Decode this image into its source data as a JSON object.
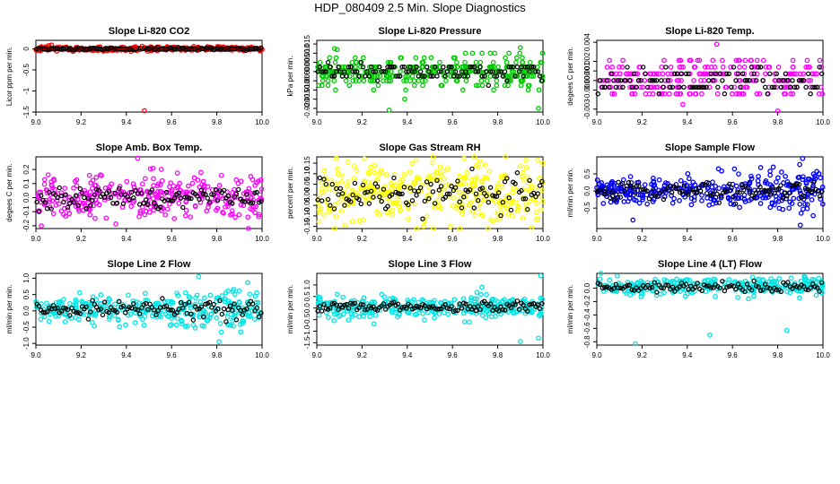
{
  "page_title": "HDP_080409  2.5 Min. Slope Diagnostics",
  "chart_data": [
    {
      "type": "scatter",
      "title": "Slope Li-820 CO2",
      "ylabel": "Licor ppm per min.",
      "xlim": [
        9.0,
        10.0
      ],
      "ylim": [
        -1.5,
        0.2
      ],
      "xticks": [
        9.0,
        9.2,
        9.4,
        9.6,
        9.8,
        10.0
      ],
      "xtick_labels": [
        "9.0",
        "9.2",
        "9.4",
        "9.6",
        "9.8",
        "10.0"
      ],
      "yticks": [
        0,
        -0.5,
        -1.0,
        -1.5
      ],
      "ytick_labels": [
        "0",
        "-0.5",
        "-1",
        "-1.5"
      ],
      "color": "#ff0000",
      "spread": 0.025,
      "n_points": 320,
      "black_points": 120,
      "outliers": [
        [
          9.48,
          -1.47
        ],
        [
          9.44,
          0.05
        ],
        [
          9.47,
          0.06
        ]
      ],
      "mean": 0.0,
      "seed": 11
    },
    {
      "type": "scatter",
      "title": "Slope Li-820 Pressure",
      "ylabel": "kPa per min.",
      "xlim": [
        9.0,
        10.0
      ],
      "ylim": [
        -0.022,
        0.017
      ],
      "xticks": [
        9.0,
        9.2,
        9.4,
        9.6,
        9.8,
        10.0
      ],
      "xtick_labels": [
        "9.0",
        "9.2",
        "9.4",
        "9.6",
        "9.8",
        "10.0"
      ],
      "yticks": [
        0.015,
        0.01,
        0.005,
        0.0,
        -0.005,
        -0.01,
        -0.015,
        -0.02
      ],
      "ytick_labels": [
        "0.015",
        "0.010",
        "0.005",
        "0.000",
        "-0.005",
        "-0.010",
        "-0.015",
        "-0.020"
      ],
      "color": "#00cc00",
      "spread": 0.004,
      "n_points": 330,
      "black_points": 110,
      "outliers": [
        [
          9.09,
          0.012
        ],
        [
          9.98,
          -0.02
        ],
        [
          9.32,
          -0.021
        ],
        [
          9.9,
          0.013
        ]
      ],
      "mean": 0.0,
      "seed": 23,
      "quantize": 0.0025
    },
    {
      "type": "scatter",
      "title": "Slope Li-820 Temp.",
      "ylabel": "degees C per min.",
      "xlim": [
        9.0,
        10.0
      ],
      "ylim": [
        -0.0033,
        0.0042
      ],
      "xticks": [
        9.0,
        9.2,
        9.4,
        9.6,
        9.8,
        10.0
      ],
      "xtick_labels": [
        "9.0",
        "9.2",
        "9.4",
        "9.6",
        "9.8",
        "10.0"
      ],
      "yticks": [
        0.004,
        0.002,
        0.001,
        0.0,
        -0.001,
        -0.003
      ],
      "ytick_labels": [
        "0.004",
        "0.002",
        "0.001",
        "0.000",
        "-0.001",
        "-0.003"
      ],
      "color": "#ff00ff",
      "spread": 0.0012,
      "n_points": 260,
      "black_points": 100,
      "outliers": [
        [
          9.53,
          0.0038
        ],
        [
          9.8,
          -0.0032
        ],
        [
          9.38,
          -0.0025
        ]
      ],
      "mean": 0.0,
      "seed": 37,
      "levels": [
        -0.0014,
        -0.0007,
        0.0,
        0.0007,
        0.0014,
        0.0021
      ]
    },
    {
      "type": "scatter",
      "title": "Slope Amb. Box Temp.",
      "ylabel": "degees C per min.",
      "xlim": [
        9.0,
        10.0
      ],
      "ylim": [
        -0.22,
        0.29
      ],
      "xticks": [
        9.0,
        9.2,
        9.4,
        9.6,
        9.8,
        10.0
      ],
      "xtick_labels": [
        "9.0",
        "9.2",
        "9.4",
        "9.6",
        "9.8",
        "10.0"
      ],
      "yticks": [
        0.2,
        0.1,
        0.0,
        -0.1,
        -0.2
      ],
      "ytick_labels": [
        "0.2",
        "0.1",
        "0.0",
        "-0.1",
        "-0.2"
      ],
      "color": "#ff00ff",
      "spread": 0.08,
      "n_points": 330,
      "black_points": 110,
      "outliers": [
        [
          9.45,
          0.28
        ]
      ],
      "mean": 0.0,
      "seed": 41
    },
    {
      "type": "scatter",
      "title": "Slope Gas Stream RH",
      "ylabel": "percent per min.",
      "xlim": [
        9.0,
        10.0
      ],
      "ylim": [
        -0.16,
        0.18
      ],
      "xticks": [
        9.0,
        9.2,
        9.4,
        9.6,
        9.8,
        10.0
      ],
      "xtick_labels": [
        "9.0",
        "9.2",
        "9.4",
        "9.6",
        "9.8",
        "10.0"
      ],
      "yticks": [
        0.15,
        0.1,
        0.05,
        0.0,
        -0.05,
        -0.1,
        -0.15
      ],
      "ytick_labels": [
        "0.15",
        "0.10",
        "0.05",
        "0.00",
        "-0.05",
        "-0.10",
        "-0.15"
      ],
      "color": "#ffff00",
      "spread": 0.075,
      "n_points": 340,
      "black_points": 110,
      "outliers": [
        [
          9.21,
          0.17
        ],
        [
          9.72,
          0.16
        ]
      ],
      "mean": 0.01,
      "seed": 53
    },
    {
      "type": "scatter",
      "title": "Slope Sample Flow",
      "ylabel": "ml/min per min.",
      "xlim": [
        9.0,
        10.0
      ],
      "ylim": [
        -1.1,
        1.0
      ],
      "xticks": [
        9.0,
        9.2,
        9.4,
        9.6,
        9.8,
        10.0
      ],
      "xtick_labels": [
        "9.0",
        "9.2",
        "9.4",
        "9.6",
        "9.8",
        "10.0"
      ],
      "yticks": [
        0.5,
        0.0,
        -0.5
      ],
      "ytick_labels": [
        "0.5",
        "0.0",
        "-0.5"
      ],
      "color": "#0000ff",
      "spread": 0.2,
      "n_points": 340,
      "black_points": 110,
      "outliers": [
        [
          9.91,
          0.95
        ],
        [
          9.16,
          -0.85
        ],
        [
          9.9,
          -1.0
        ],
        [
          9.78,
          0.7
        ]
      ],
      "mean": 0.0,
      "seed": 67,
      "growing": true
    },
    {
      "type": "scatter",
      "title": "Slope Line 2 Flow",
      "ylabel": "ml/min per min.",
      "xlim": [
        9.0,
        10.0
      ],
      "ylim": [
        -1.05,
        1.15
      ],
      "xticks": [
        9.0,
        9.2,
        9.4,
        9.6,
        9.8,
        10.0
      ],
      "xtick_labels": [
        "9.0",
        "9.2",
        "9.4",
        "9.6",
        "9.8",
        "10.0"
      ],
      "yticks": [
        1.0,
        0.5,
        0.0,
        -0.5,
        -1.0
      ],
      "ytick_labels": [
        "1.0",
        "0.5",
        "0.0",
        "-0.5",
        "-1.0"
      ],
      "color": "#00e5e5",
      "spread": 0.22,
      "n_points": 330,
      "black_points": 110,
      "outliers": [
        [
          9.72,
          1.05
        ],
        [
          9.81,
          -0.95
        ],
        [
          9.82,
          -0.65
        ],
        [
          9.84,
          0.55
        ]
      ],
      "mean": 0.05,
      "seed": 71,
      "growing": true
    },
    {
      "type": "scatter",
      "title": "Slope Line 3 Flow",
      "ylabel": "ml/min per min.",
      "xlim": [
        9.0,
        10.0
      ],
      "ylim": [
        -1.6,
        1.5
      ],
      "xticks": [
        9.0,
        9.2,
        9.4,
        9.6,
        9.8,
        10.0
      ],
      "xtick_labels": [
        "9.0",
        "9.2",
        "9.4",
        "9.6",
        "9.8",
        "10.0"
      ],
      "yticks": [
        1.0,
        0.5,
        0.0,
        -0.5,
        -1.0,
        -1.5
      ],
      "ytick_labels": [
        "1.0",
        "0.5",
        "0.0",
        "-0.5",
        "-1.0",
        "-1.5"
      ],
      "color": "#00e5e5",
      "spread": 0.22,
      "n_points": 330,
      "black_points": 110,
      "outliers": [
        [
          9.9,
          -1.45
        ],
        [
          9.99,
          1.4
        ],
        [
          9.73,
          0.9
        ],
        [
          9.98,
          -1.3
        ]
      ],
      "mean": 0.05,
      "seed": 83
    },
    {
      "type": "scatter",
      "title": "Slope Line 4 (LT) Flow",
      "ylabel": "ml/min per min.",
      "xlim": [
        9.0,
        10.0
      ],
      "ylim": [
        -0.85,
        0.22
      ],
      "xticks": [
        9.0,
        9.2,
        9.4,
        9.6,
        9.8,
        10.0
      ],
      "xtick_labels": [
        "9.0",
        "9.2",
        "9.4",
        "9.6",
        "9.8",
        "10.0"
      ],
      "yticks": [
        0.0,
        -0.2,
        -0.4,
        -0.6,
        -0.8
      ],
      "ytick_labels": [
        "0.0",
        "-0.2",
        "-0.4",
        "-0.6",
        "-0.8"
      ],
      "color": "#00e5e5",
      "spread": 0.07,
      "n_points": 300,
      "black_points": 100,
      "outliers": [
        [
          9.17,
          -0.83
        ],
        [
          9.5,
          -0.7
        ],
        [
          9.84,
          -0.63
        ],
        [
          9.86,
          0.15
        ]
      ],
      "mean": 0.02,
      "seed": 97
    }
  ]
}
